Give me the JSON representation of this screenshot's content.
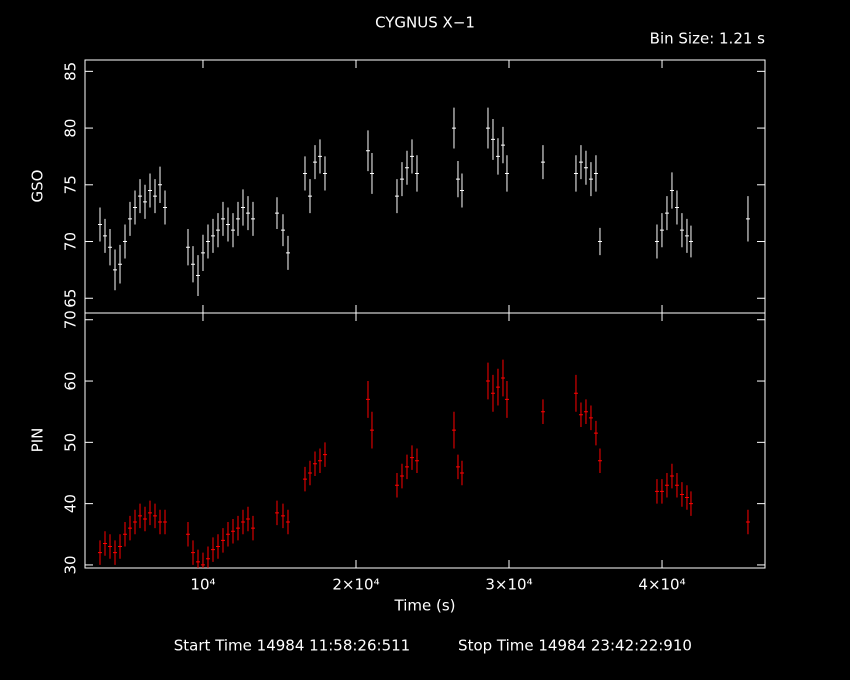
{
  "chart_data": [
    {
      "type": "errorbar",
      "title": "CYGNUS X−1",
      "subtitle": "Bin Size: 1.21 s",
      "y_label": "GSO",
      "color": "#ffffff",
      "x": [
        3270,
        3597,
        3924,
        4251,
        4578,
        4904,
        5231,
        5558,
        5885,
        6211,
        6538,
        6865,
        7192,
        7519,
        9021,
        9348,
        9675,
        10001,
        10328,
        10655,
        10982,
        11308,
        11635,
        11962,
        12289,
        12615,
        12942,
        13269,
        14837,
        15229,
        15556,
        16667,
        16994,
        17321,
        17647,
        17974,
        20784,
        21045,
        22679,
        23006,
        23333,
        23660,
        23986,
        26404,
        26665,
        26927,
        28626,
        28953,
        29279,
        29606,
        29867,
        32220,
        34376,
        34703,
        35030,
        35356,
        35683,
        35945,
        39670,
        39996,
        40323,
        40650,
        40977,
        41303,
        41630,
        41892,
        45617
      ],
      "values": [
        71.5,
        70.5,
        69.5,
        67.5,
        68,
        70,
        72,
        73,
        74,
        73.5,
        74.5,
        74,
        75,
        73,
        69.5,
        68,
        67,
        69,
        70,
        70.5,
        71,
        72,
        71.5,
        71,
        72,
        73,
        72.5,
        72,
        72.5,
        71,
        69,
        76,
        74,
        77,
        77.5,
        76,
        78,
        76,
        74,
        75.5,
        76.5,
        77.5,
        76,
        80,
        75.5,
        74.5,
        80,
        79,
        77.5,
        78.5,
        76,
        77,
        76,
        77,
        76.5,
        75.5,
        76,
        70,
        70,
        71,
        72.5,
        74.5,
        73,
        71,
        70.5,
        70,
        72
      ],
      "errors": [
        1.5,
        1.5,
        1.6,
        1.8,
        1.7,
        1.5,
        1.5,
        1.5,
        1.5,
        1.5,
        1.5,
        1.5,
        1.6,
        1.5,
        1.6,
        1.6,
        1.8,
        1.6,
        1.5,
        1.5,
        1.5,
        1.5,
        1.5,
        1.5,
        1.5,
        1.6,
        1.5,
        1.5,
        1.4,
        1.4,
        1.5,
        1.5,
        1.5,
        1.5,
        1.5,
        1.5,
        1.8,
        1.8,
        1.5,
        1.5,
        1.5,
        1.5,
        1.6,
        1.8,
        1.6,
        1.5,
        1.8,
        1.8,
        1.6,
        1.6,
        1.6,
        1.5,
        1.6,
        1.5,
        1.5,
        1.5,
        1.6,
        1.2,
        1.5,
        1.5,
        1.5,
        1.6,
        1.5,
        1.5,
        1.5,
        1.4,
        2
      ],
      "xlim": [
        2290,
        46730
      ],
      "xticks": [
        10000,
        20000,
        30000,
        40000
      ],
      "ylim": [
        63.7,
        86
      ],
      "yticks": [
        65,
        70,
        75,
        80,
        85
      ]
    },
    {
      "type": "errorbar",
      "y_label": "PIN",
      "x_label": "Time (s)",
      "color": "#ff0000",
      "start_time": "Start Time 14984 11:58:26:511",
      "stop_time": "Stop Time 14984 23:42:22:910",
      "x": [
        3270,
        3597,
        3924,
        4251,
        4578,
        4904,
        5231,
        5558,
        5885,
        6211,
        6538,
        6865,
        7192,
        7519,
        9021,
        9348,
        9675,
        10001,
        10328,
        10655,
        10982,
        11308,
        11635,
        11962,
        12289,
        12615,
        12942,
        13269,
        14837,
        15229,
        15556,
        16667,
        16994,
        17321,
        17647,
        17974,
        20784,
        21045,
        22679,
        23006,
        23333,
        23660,
        23986,
        26404,
        26665,
        26927,
        28626,
        28953,
        29279,
        29606,
        29867,
        32220,
        34376,
        34703,
        35030,
        35356,
        35683,
        35945,
        39670,
        39996,
        40323,
        40650,
        40977,
        41303,
        41630,
        41892,
        45617
      ],
      "values": [
        32,
        33.5,
        33,
        32,
        33,
        35,
        36,
        37,
        38,
        37.5,
        38.5,
        38,
        37,
        37,
        35,
        32,
        30.5,
        30,
        31,
        32.5,
        33,
        34,
        35,
        35.5,
        36,
        37,
        37.5,
        36,
        38.5,
        38,
        37,
        44,
        45,
        46.5,
        47,
        48,
        57,
        52,
        43,
        44.5,
        46,
        47.5,
        47,
        52,
        46,
        45,
        60,
        58,
        59,
        60.5,
        57,
        55,
        58,
        54.5,
        55,
        54,
        51.5,
        47,
        42,
        42,
        43,
        44.5,
        43,
        41.5,
        41,
        40,
        37
      ],
      "errors": [
        2,
        2,
        2,
        2,
        2,
        2,
        2,
        2,
        2,
        2,
        2,
        2,
        2,
        2,
        2,
        2,
        2,
        2,
        2,
        2,
        2,
        2,
        2,
        2,
        2,
        2,
        2,
        2,
        2,
        2,
        2,
        2,
        2,
        2,
        2,
        2,
        3,
        3,
        2,
        2,
        2,
        2,
        2,
        3,
        2,
        2,
        3,
        3,
        3,
        3,
        3,
        2,
        3,
        2,
        2,
        2,
        2,
        2,
        2,
        2,
        2,
        2,
        2,
        2,
        2,
        2,
        2
      ],
      "xlim": [
        2290,
        46730
      ],
      "xticks": [
        {
          "value": 10000,
          "label": "10⁴"
        },
        {
          "value": 20000,
          "label": "2×10⁴"
        },
        {
          "value": 30000,
          "label": "3×10⁴"
        },
        {
          "value": 40000,
          "label": "4×10⁴"
        }
      ],
      "ylim": [
        29.5,
        71.1
      ],
      "yticks": [
        30,
        40,
        50,
        60,
        70
      ]
    }
  ]
}
